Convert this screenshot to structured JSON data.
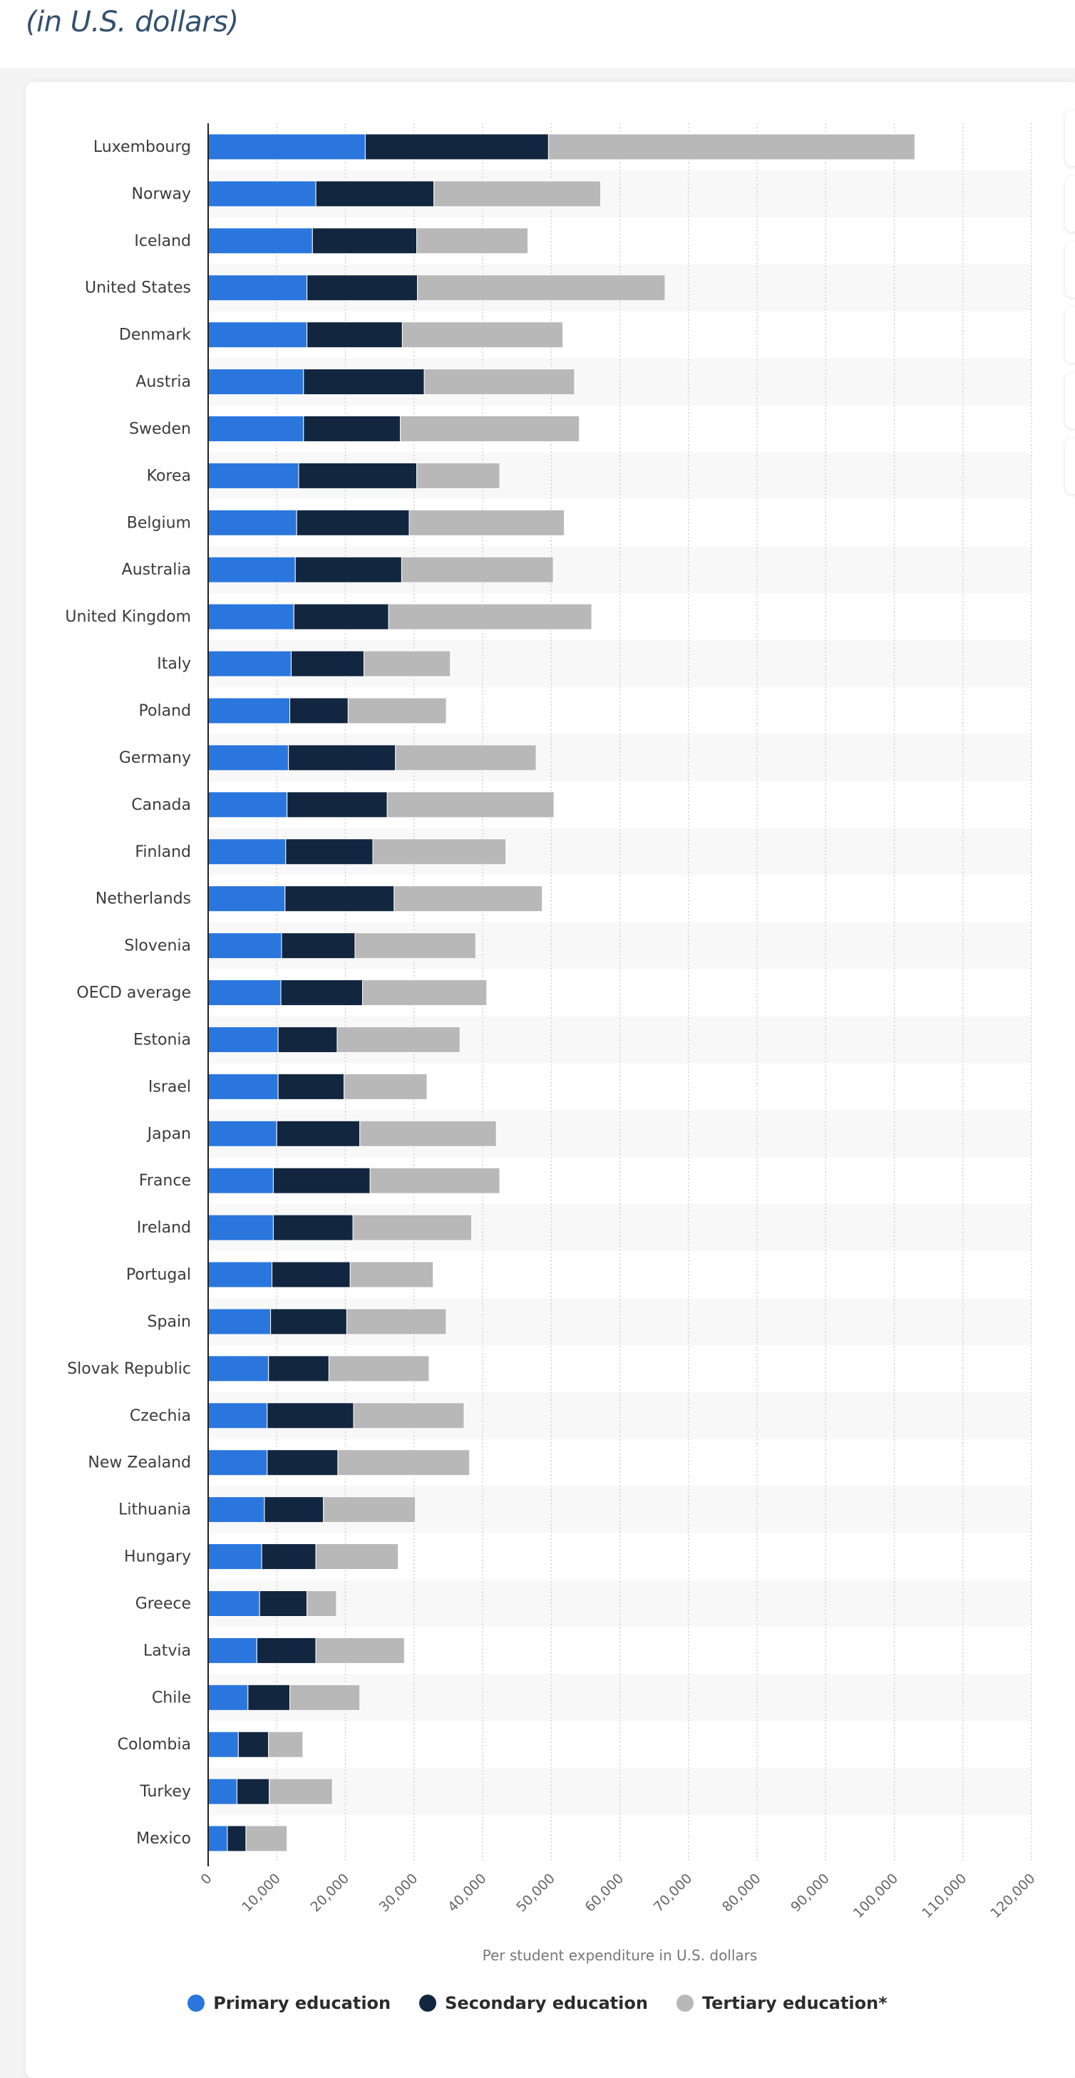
{
  "header": {
    "subtitle": "(in U.S. dollars)"
  },
  "chart_data": {
    "type": "bar",
    "orientation": "horizontal",
    "stacked": true,
    "title": "",
    "xlabel": "Per student expenditure in U.S. dollars",
    "ylabel": "",
    "xlim": [
      0,
      120000
    ],
    "x_ticks": [
      0,
      10000,
      20000,
      30000,
      40000,
      50000,
      60000,
      70000,
      80000,
      90000,
      100000,
      110000,
      120000
    ],
    "x_tick_labels": [
      "0",
      "10,000",
      "20,000",
      "30,000",
      "40,000",
      "50,000",
      "60,000",
      "70,000",
      "80,000",
      "90,000",
      "100,000",
      "110,000",
      "120,000"
    ],
    "grid": "vertical dotted",
    "legend_position": "bottom",
    "categories": [
      "Luxembourg",
      "Norway",
      "Iceland",
      "United States",
      "Denmark",
      "Austria",
      "Sweden",
      "Korea",
      "Belgium",
      "Australia",
      "United Kingdom",
      "Italy",
      "Poland",
      "Germany",
      "Canada",
      "Finland",
      "Netherlands",
      "Slovenia",
      "OECD average",
      "Estonia",
      "Israel",
      "Japan",
      "France",
      "Ireland",
      "Portugal",
      "Spain",
      "Slovak Republic",
      "Czechia",
      "New Zealand",
      "Lithuania",
      "Hungary",
      "Greece",
      "Latvia",
      "Chile",
      "Colombia",
      "Turkey",
      "Mexico"
    ],
    "series": [
      {
        "name": "Primary education",
        "color": "#2a76dd",
        "values": [
          22900,
          15700,
          15200,
          14400,
          14400,
          13900,
          13900,
          13200,
          12900,
          12700,
          12500,
          12100,
          11900,
          11700,
          11500,
          11300,
          11200,
          10700,
          10600,
          10200,
          10200,
          10000,
          9500,
          9500,
          9300,
          9100,
          8800,
          8600,
          8600,
          8200,
          7800,
          7500,
          7100,
          5800,
          4400,
          4200,
          2800
        ]
      },
      {
        "name": "Secondary education",
        "color": "#13263f",
        "values": [
          26700,
          17200,
          15200,
          16100,
          13900,
          17600,
          14100,
          17200,
          16400,
          15500,
          13800,
          10600,
          8500,
          15600,
          14600,
          12700,
          15900,
          10700,
          11900,
          8600,
          9600,
          12100,
          14100,
          11600,
          11400,
          11100,
          8800,
          12600,
          10300,
          8600,
          7900,
          6900,
          8600,
          6100,
          4400,
          4700,
          2700
        ]
      },
      {
        "name": "Tertiary education*",
        "color": "#b8b8b8",
        "values": [
          53400,
          24300,
          16200,
          36100,
          23400,
          21900,
          26100,
          12100,
          22600,
          22100,
          29600,
          12600,
          14300,
          20500,
          24300,
          19400,
          21600,
          17600,
          18100,
          17900,
          12100,
          19900,
          18900,
          17300,
          12100,
          14500,
          14600,
          16100,
          19200,
          13400,
          12000,
          4300,
          12900,
          10200,
          5000,
          9200,
          6000
        ]
      }
    ]
  }
}
